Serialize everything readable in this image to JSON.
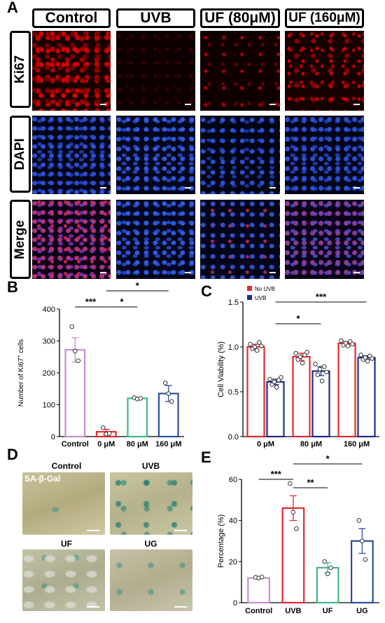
{
  "panel_a": {
    "letter": "A",
    "columns": [
      "Control",
      "UVB",
      "UF (80μM)",
      "UF (160μM)"
    ],
    "rows": [
      "Ki67",
      "DAPI",
      "Merge"
    ]
  },
  "panel_b": {
    "letter": "B",
    "ylabel_main": "Number of Ki67",
    "ylabel_sup": "+",
    "ylabel_tail": " cells",
    "significance": [
      "***",
      "*",
      "*"
    ]
  },
  "panel_c": {
    "letter": "C",
    "ylabel": "Cell Viability (%)",
    "significance": [
      "*",
      "***"
    ]
  },
  "panel_d": {
    "letter": "D",
    "images": [
      {
        "title": "Control",
        "overlay": "SA-β-Gal"
      },
      {
        "title": "UVB"
      },
      {
        "title": "UF"
      },
      {
        "title": "UG"
      }
    ]
  },
  "panel_e": {
    "letter": "E",
    "ylabel": "Percentage (%)",
    "significance": [
      "***",
      "**",
      "*"
    ]
  },
  "chart_data": [
    {
      "id": "B",
      "type": "bar",
      "categories": [
        "Control",
        "0 μM",
        "80 μM",
        "160 μM"
      ],
      "values": [
        272,
        15,
        120,
        135
      ],
      "errors": [
        38,
        8,
        3,
        25
      ],
      "points": [
        [
          345,
          268,
          238
        ],
        [
          28,
          8,
          10
        ],
        [
          122,
          118,
          120
        ],
        [
          168,
          135,
          110
        ]
      ],
      "colors": [
        "#c68fd1",
        "#e8272e",
        "#3dba85",
        "#2c4ea0"
      ],
      "ylim": [
        0,
        400
      ],
      "yticks": [
        0,
        100,
        200,
        300,
        400
      ],
      "ylabel": "Number of Ki67+ cells"
    },
    {
      "id": "C",
      "type": "bar",
      "categories": [
        "0 μM",
        "80 μM",
        "160 μM"
      ],
      "series": [
        {
          "name": "No UVB",
          "color": "#e8272e",
          "values": [
            1.0,
            0.89,
            1.04
          ],
          "errors": [
            0.03,
            0.04,
            0.02
          ],
          "points": [
            [
              1.03,
              0.98,
              1.0,
              0.96,
              1.05,
              1.01
            ],
            [
              0.93,
              0.86,
              0.89,
              0.82,
              0.91,
              0.94
            ],
            [
              1.07,
              1.02,
              1.04,
              1.01,
              1.06,
              1.03
            ]
          ]
        },
        {
          "name": "UVB",
          "color": "#1b2d8a",
          "values": [
            0.61,
            0.73,
            0.88
          ],
          "errors": [
            0.03,
            0.05,
            0.02
          ],
          "points": [
            [
              0.64,
              0.58,
              0.61,
              0.55,
              0.63,
              0.66
            ],
            [
              0.81,
              0.69,
              0.75,
              0.62,
              0.78,
              0.72
            ],
            [
              0.91,
              0.86,
              0.88,
              0.84,
              0.9,
              0.87
            ]
          ]
        }
      ],
      "ylim": [
        0,
        1.5
      ],
      "yticks": [
        0.0,
        0.5,
        1.0,
        1.5
      ],
      "ylabel": "Cell Viability (%)",
      "legend_position": "top-left"
    },
    {
      "id": "E",
      "type": "bar",
      "categories": [
        "Control",
        "UVB",
        "UF",
        "UG"
      ],
      "values": [
        12,
        46,
        17,
        30
      ],
      "errors": [
        0.4,
        6,
        2.5,
        6
      ],
      "points": [
        [
          12.3,
          12.0,
          12.5
        ],
        [
          58,
          44,
          36
        ],
        [
          20,
          14,
          17
        ],
        [
          40,
          30,
          21
        ]
      ],
      "colors": [
        "#c68fd1",
        "#e8272e",
        "#3dba85",
        "#2c4ea0"
      ],
      "ylim": [
        0,
        60
      ],
      "yticks": [
        0,
        20,
        40,
        60
      ],
      "ylabel": "Percentage (%)"
    }
  ]
}
